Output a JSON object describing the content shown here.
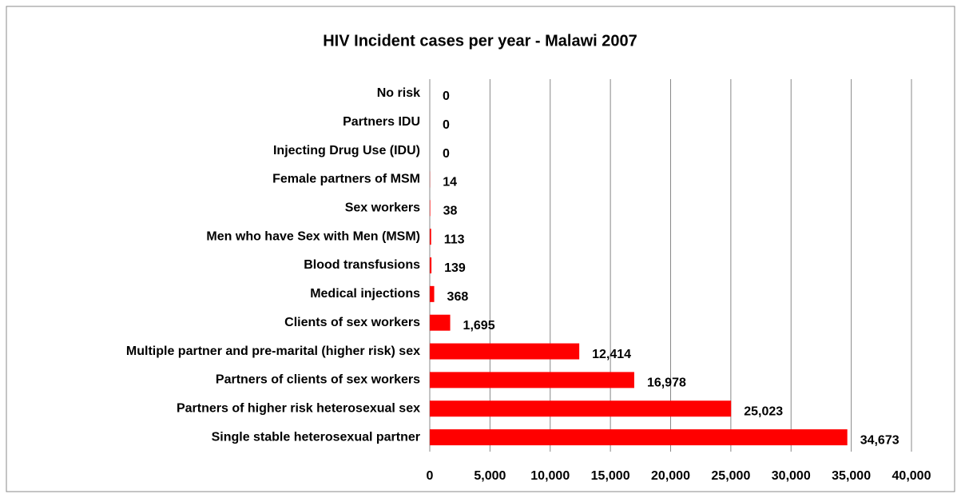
{
  "chart_data": {
    "type": "barh",
    "title": "HIV Incident cases per year - Malawi 2007",
    "categories": [
      "No risk",
      "Partners IDU",
      "Injecting Drug Use (IDU)",
      "Female partners of MSM",
      "Sex workers",
      "Men who have Sex with Men (MSM)",
      "Blood transfusions",
      "Medical injections",
      "Clients of sex workers",
      "Multiple partner and pre-marital (higher risk) sex",
      "Partners of clients of sex workers",
      "Partners of higher risk heterosexual sex",
      "Single stable heterosexual partner"
    ],
    "values": [
      0,
      0,
      0,
      14,
      38,
      113,
      139,
      368,
      1695,
      12414,
      16978,
      25023,
      34673
    ],
    "value_labels": [
      "0",
      "0",
      "0",
      "14",
      "38",
      "113",
      "139",
      "368",
      "1,695",
      "12,414",
      "16,978",
      "25,023",
      "34,673"
    ],
    "color": "#ff0000",
    "xlim": [
      0,
      40000
    ],
    "xticks": [
      0,
      {
        "value": 5000,
        "label": "5,000"
      },
      {
        "value": 10000,
        "label": "10,000"
      },
      {
        "value": 15000,
        "label": "15,000"
      },
      {
        "value": 20000,
        "label": "20,000"
      },
      {
        "value": 25000,
        "label": "25,000"
      },
      {
        "value": 30000,
        "label": "30,000"
      },
      {
        "value": 35000,
        "label": "35,000"
      },
      {
        "value": 40000,
        "label": "40,000"
      }
    ],
    "grid": true
  }
}
